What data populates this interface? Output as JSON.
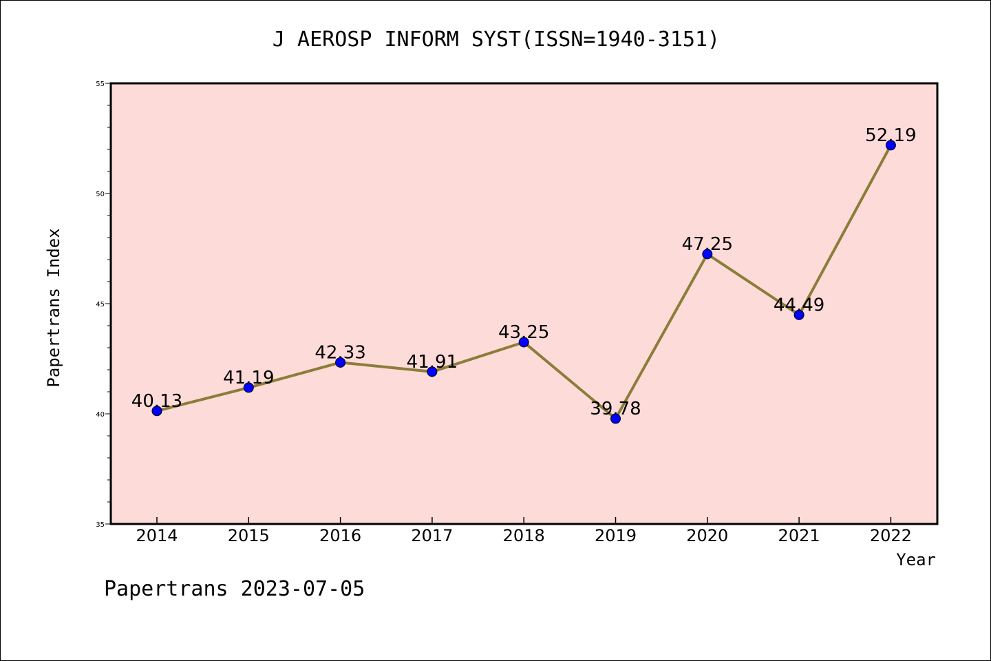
{
  "figure": {
    "footer": "Papertrans 2023-07-05"
  },
  "chart_data": {
    "type": "line",
    "title": "J AEROSP INFORM SYST(ISSN=1940-3151)",
    "xlabel": "Year",
    "ylabel": "Papertrans Index",
    "ylim": [
      35,
      55
    ],
    "y_ticks": [
      35,
      40,
      45,
      50,
      55
    ],
    "y_minor_step": 1,
    "categories": [
      "2014",
      "2015",
      "2016",
      "2017",
      "2018",
      "2019",
      "2020",
      "2021",
      "2022"
    ],
    "series": [
      {
        "values": [
          40.13,
          41.19,
          42.33,
          41.91,
          43.25,
          39.78,
          47.25,
          44.49,
          52.19
        ],
        "labels": [
          "40.13",
          "41.19",
          "42.33",
          "41.91",
          "43.25",
          "39.78",
          "47.25",
          "44.49",
          "52.19"
        ],
        "line_color": "#8b7d3a",
        "marker_color": "#0000ff"
      }
    ],
    "plot_background": "#fddbd8",
    "grid": false,
    "legend": "none"
  }
}
